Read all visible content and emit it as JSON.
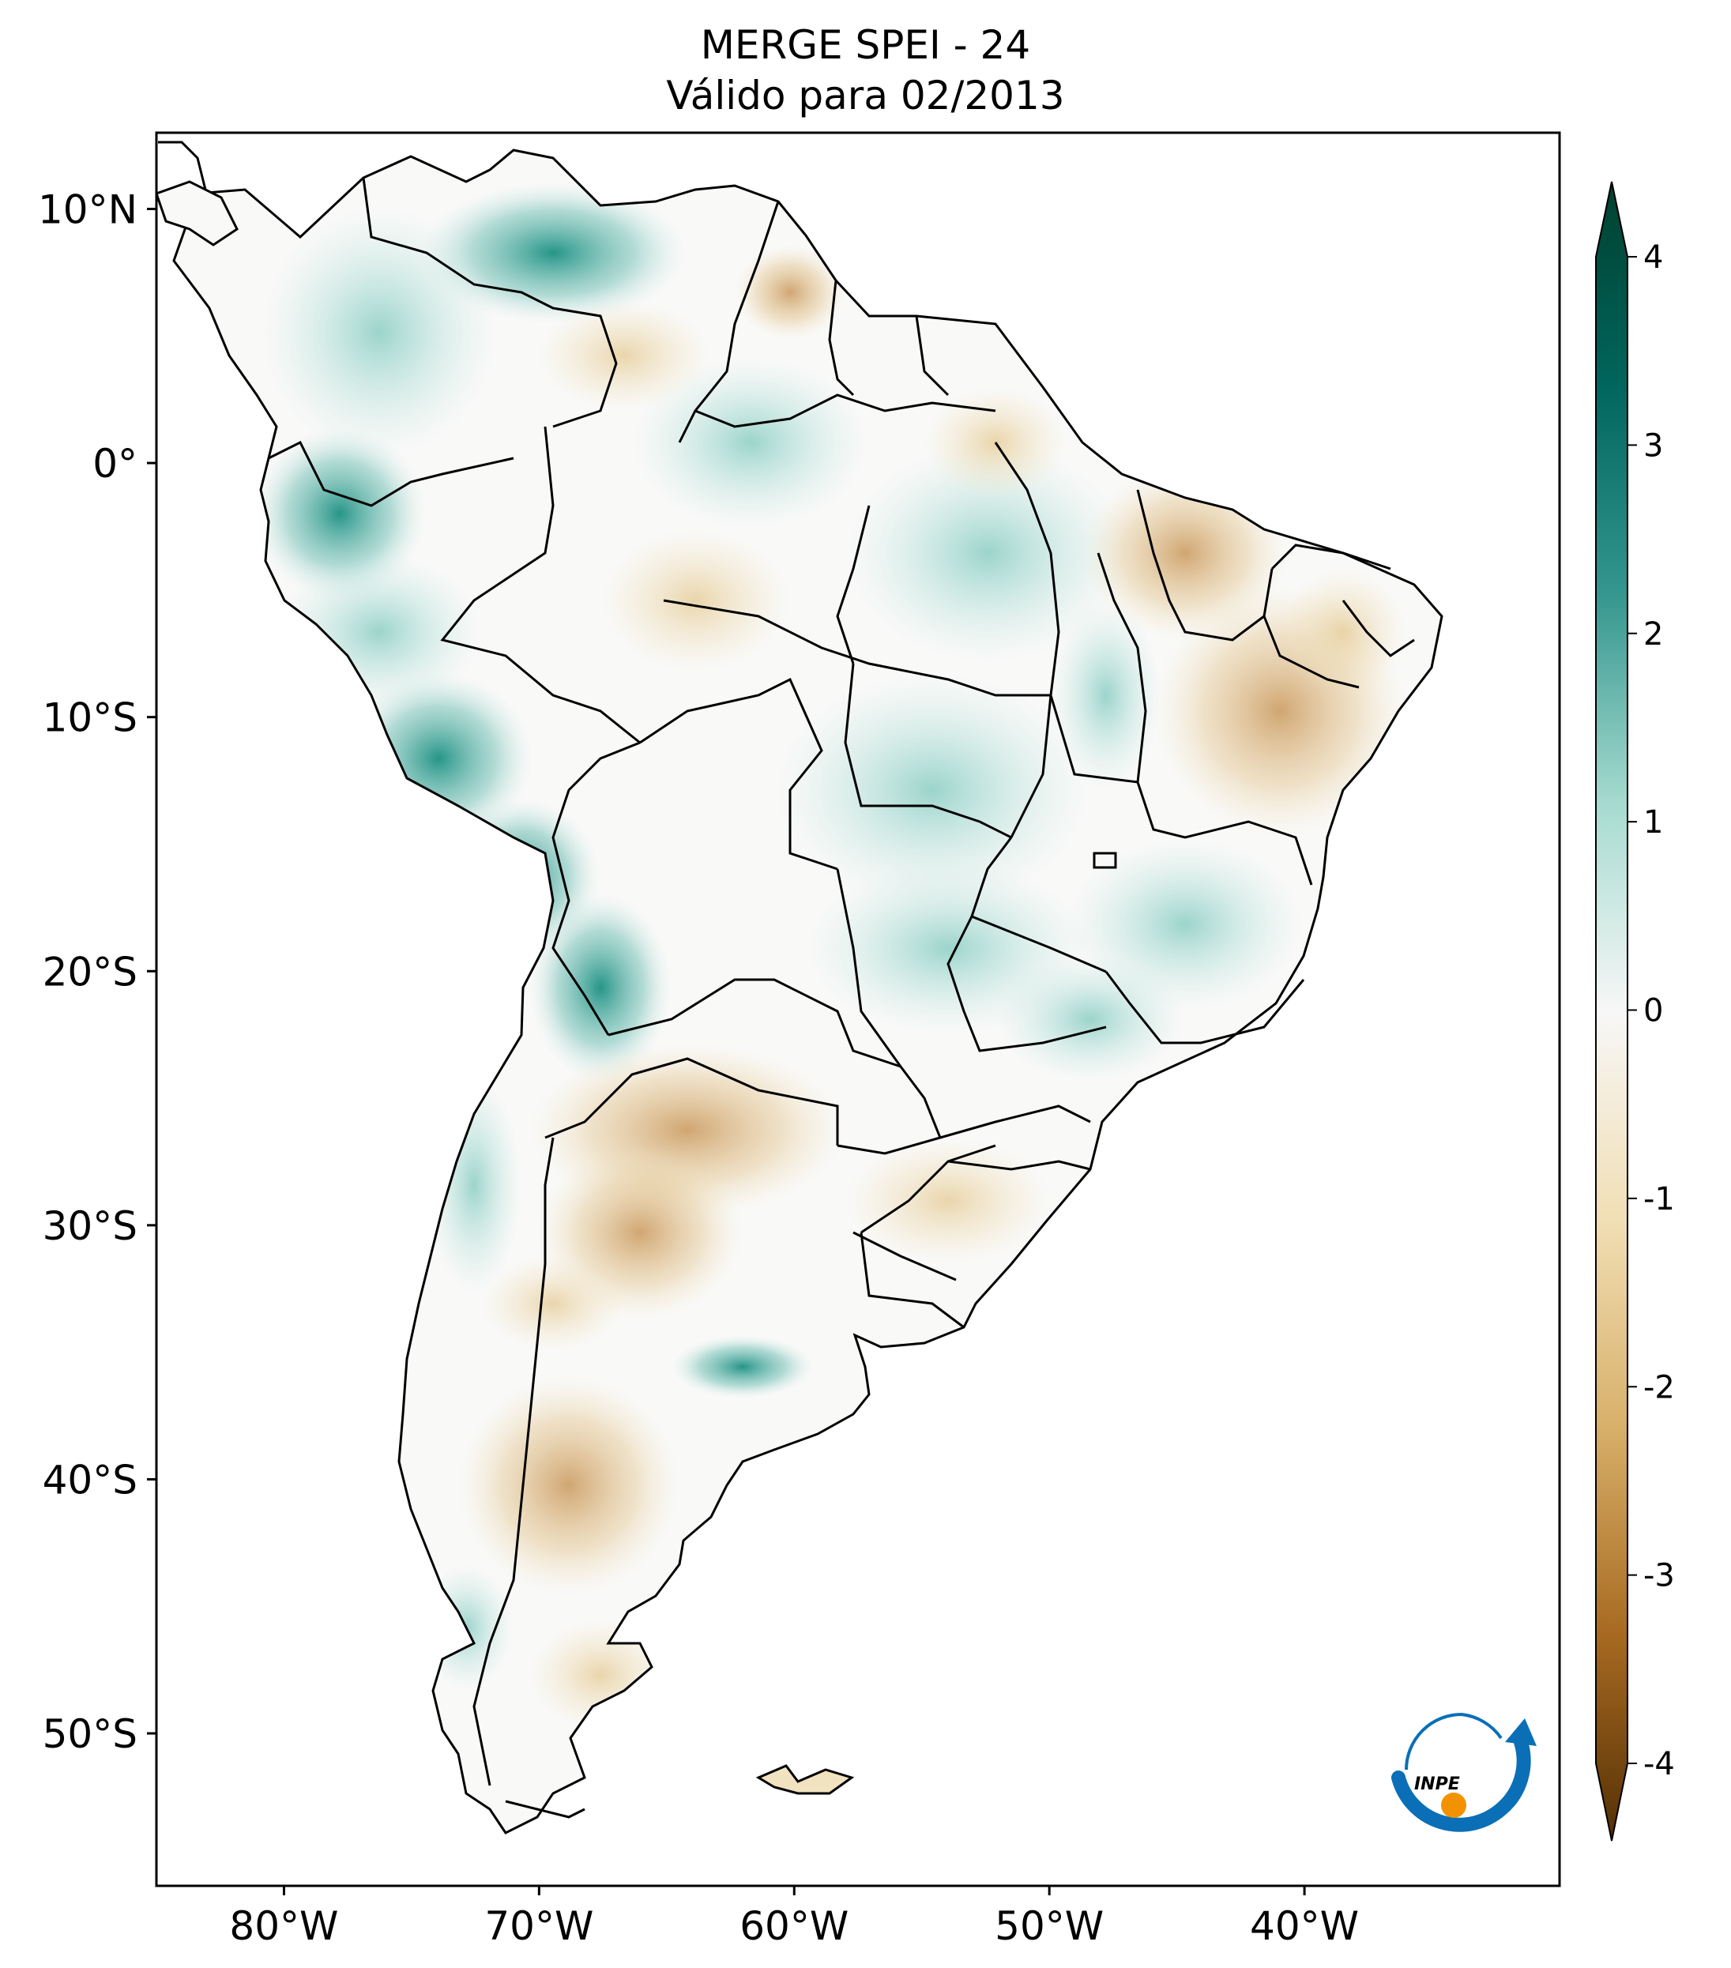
{
  "title": {
    "line1": "MERGE   SPEI - 24",
    "line2": "Válido para 02/2013"
  },
  "map": {
    "lon_range": [
      -85,
      -30
    ],
    "lat_range": [
      -56,
      13
    ],
    "lat_ticks": [
      {
        "value": 10,
        "label": "10°N"
      },
      {
        "value": 0,
        "label": "0°"
      },
      {
        "value": -10,
        "label": "10°S"
      },
      {
        "value": -20,
        "label": "20°S"
      },
      {
        "value": -30,
        "label": "30°S"
      },
      {
        "value": -40,
        "label": "40°S"
      },
      {
        "value": -50,
        "label": "50°S"
      }
    ],
    "lon_ticks": [
      {
        "value": -80,
        "label": "80°W"
      },
      {
        "value": -70,
        "label": "70°W"
      },
      {
        "value": -60,
        "label": "60°W"
      },
      {
        "value": -50,
        "label": "50°W"
      },
      {
        "value": -40,
        "label": "40°W"
      }
    ]
  },
  "colorbar": {
    "range": [
      -4,
      4
    ],
    "ticks": [
      "4",
      "3",
      "2",
      "1",
      "0",
      "-1",
      "-2",
      "-3",
      "-4"
    ],
    "colors": {
      "wet_max": "#00402f",
      "wet_strong": "#017a6e",
      "wet_mid": "#5ab5a9",
      "wet_light": "#c5e8e2",
      "neutral": "#f7f7f7",
      "dry_light": "#f2e3c0",
      "dry_mid": "#d9b26b",
      "dry_strong": "#a0621a",
      "dry_max": "#543005"
    }
  },
  "logo": {
    "text": "INPE",
    "colors": {
      "arc": "#0a6fb6",
      "dot": "#f39200"
    }
  }
}
